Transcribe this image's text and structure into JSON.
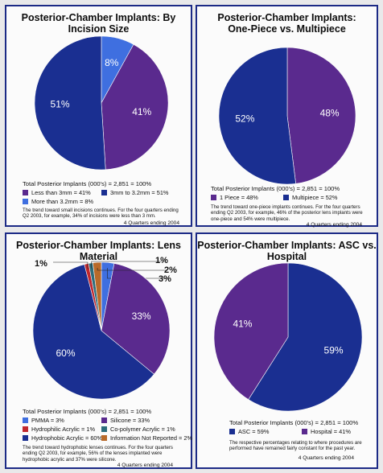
{
  "colors": {
    "purple": "#5a2a8e",
    "navy": "#1a2f91",
    "blue": "#3f6fe0",
    "red": "#c0282e",
    "teal": "#2d6d7c",
    "orange": "#b86a2a",
    "frame": "#1c2a86"
  },
  "charts": [
    {
      "title": "Posterior-Chamber Implants: By Incision Size",
      "total": "Total Posterior Implants (000's) = 2,851 = 100%",
      "legend": [
        "Less than 3mm = 41%",
        "3mm to 3.2mm = 51%",
        "More than 3.2mm = 8%"
      ],
      "note": "The trend toward small incisions continues. For the four quarters ending Q2 2003, for example, 34% of incisions were less than 3 mm.",
      "footer": "4 Quarters ending 2004"
    },
    {
      "title": "Posterior-Chamber Implants:\nOne-Piece vs. Multipiece",
      "total": "Total Posterior Implants (000's) = 2,851 = 100%",
      "legend": [
        "1 Piece = 48%",
        "Multipiece = 52%"
      ],
      "note": "The trend toward one-piece implants continues. For the four quarters ending Q2 2003, for example, 46% of the posterior lens implants were one-piece and 54% were multipiece.",
      "footer": "4 Quarters ending 2004"
    },
    {
      "title": "Posterior-Chamber Implants: Lens Material",
      "total": "Total Posterior Implants (000's) = 2,851 = 100%",
      "legend": [
        "PMMA = 3%",
        "Silicone = 33%",
        "Hydrophilic Acrylic = 1%",
        "Co-polymer Acrylic = 1%",
        "Hydrophobic Acrylic = 60%",
        "Information Not Reported = 2%"
      ],
      "note": "The trend toward hydrophobic lenses continues. For the four quarters ending Q2 2003, for example, 56% of the lenses implanted were hydrophobic acrylic and 37% were silicone.",
      "footer": "4 Quarters ending 2004"
    },
    {
      "title": "Posterior-Chamber Implants: ASC vs. Hospital",
      "total": "Total Posterior Implants (000's) = 2,851 = 100%",
      "legend": [
        "ASC = 59%",
        "Hospital = 41%"
      ],
      "note": "The respective percentages relating to where procedures are performed have remained fairly constant for the past year.",
      "footer": "4 Quarters ending 2004"
    }
  ],
  "chart_data": [
    {
      "type": "pie",
      "title": "Posterior-Chamber Implants: By Incision Size",
      "labels": [
        "Less than 3mm",
        "3mm to 3.2mm",
        "More than 3.2mm"
      ],
      "values": [
        41,
        51,
        8
      ],
      "slice_labels": [
        "41%",
        "51%",
        "8%"
      ],
      "colors": [
        "#5a2a8e",
        "#1a2f91",
        "#3f6fe0"
      ]
    },
    {
      "type": "pie",
      "title": "Posterior-Chamber Implants: One-Piece vs. Multipiece",
      "labels": [
        "1 Piece",
        "Multipiece"
      ],
      "values": [
        48,
        52
      ],
      "slice_labels": [
        "48%",
        "52%"
      ],
      "colors": [
        "#5a2a8e",
        "#1a2f91"
      ]
    },
    {
      "type": "pie",
      "title": "Posterior-Chamber Implants: Lens Material",
      "labels": [
        "PMMA",
        "Silicone",
        "Hydrophobic Acrylic",
        "Hydrophilic Acrylic",
        "Co-polymer Acrylic",
        "Information Not Reported"
      ],
      "values": [
        3,
        33,
        60,
        1,
        1,
        2
      ],
      "slice_labels": [
        "3%",
        "33%",
        "60%",
        "1%",
        "1%",
        "2%"
      ],
      "colors": [
        "#3f6fe0",
        "#5a2a8e",
        "#1a2f91",
        "#c0282e",
        "#2d6d7c",
        "#b86a2a"
      ]
    },
    {
      "type": "pie",
      "title": "Posterior-Chamber Implants: ASC vs. Hospital",
      "labels": [
        "ASC",
        "Hospital"
      ],
      "values": [
        59,
        41
      ],
      "slice_labels": [
        "59%",
        "41%"
      ],
      "colors": [
        "#1a2f91",
        "#5a2a8e"
      ]
    }
  ]
}
